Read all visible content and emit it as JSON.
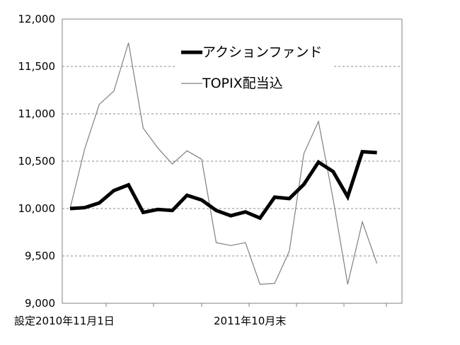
{
  "chart_data": {
    "type": "line",
    "ylim": [
      9000,
      12000
    ],
    "y_ticks": [
      "9,000",
      "9,500",
      "10,000",
      "10,500",
      "11,000",
      "11,500",
      "12,000"
    ],
    "x_tick_labels": [
      "設定2010年11月1日",
      "2011年10月末"
    ],
    "grid": "horizontal dashed",
    "legend_position": "top-center",
    "series": [
      {
        "name": "アクションファンド",
        "color": "#000000",
        "style": "thick",
        "values": [
          10000,
          10010,
          10060,
          10190,
          10250,
          9960,
          9990,
          9980,
          10140,
          10090,
          9980,
          9925,
          9965,
          9900,
          10120,
          10105,
          10255,
          10490,
          10390,
          10125,
          10600,
          10590
        ]
      },
      {
        "name": "TOPIX配当込",
        "color": "#808080",
        "style": "thin",
        "values": [
          10000,
          10630,
          11100,
          11240,
          11750,
          10850,
          10640,
          10470,
          10610,
          10520,
          9640,
          9610,
          9640,
          9200,
          9210,
          9550,
          10580,
          10920,
          10100,
          9200,
          9860,
          9420
        ]
      }
    ]
  }
}
